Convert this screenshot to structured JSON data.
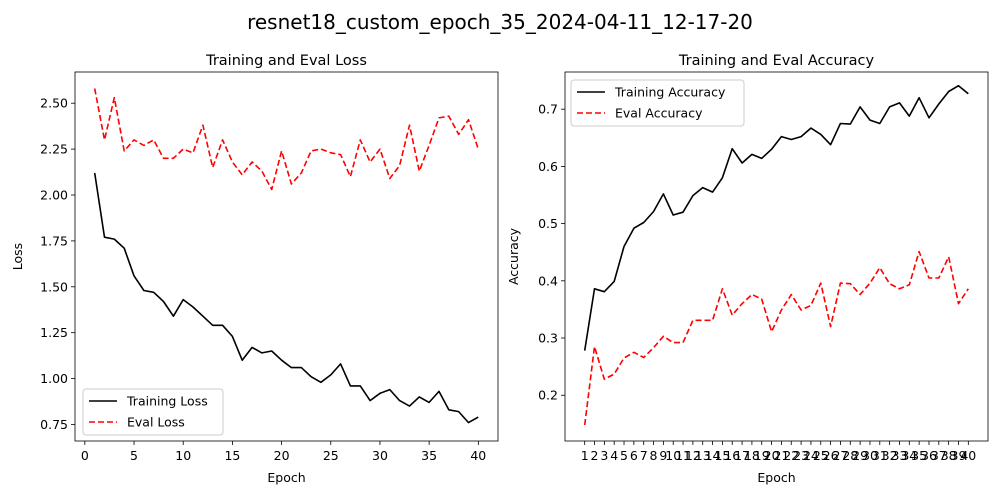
{
  "figure_title": "resnet18_custom_epoch_35_2024-04-11_12-17-20",
  "chart_data": [
    {
      "type": "line",
      "title": "Training and Eval Loss",
      "xlabel": "Epoch",
      "ylabel": "Loss",
      "xlim": [
        -1,
        42
      ],
      "ylim": [
        0.66,
        2.67
      ],
      "xticks": [
        0,
        5,
        10,
        15,
        20,
        25,
        30,
        35,
        40
      ],
      "xtick_labels": [
        "0",
        "5",
        "10",
        "15",
        "20",
        "25",
        "30",
        "35",
        "40"
      ],
      "yticks": [
        0.75,
        1.0,
        1.25,
        1.5,
        1.75,
        2.0,
        2.25,
        2.5
      ],
      "ytick_labels": [
        "0.75",
        "1.00",
        "1.25",
        "1.50",
        "1.75",
        "2.00",
        "2.25",
        "2.50"
      ],
      "legend_position": "lower-left",
      "x": [
        1,
        2,
        3,
        4,
        5,
        6,
        7,
        8,
        9,
        10,
        11,
        12,
        13,
        14,
        15,
        16,
        17,
        18,
        19,
        20,
        21,
        22,
        23,
        24,
        25,
        26,
        27,
        28,
        29,
        30,
        31,
        32,
        33,
        34,
        35,
        36,
        37,
        38,
        39,
        40
      ],
      "series": [
        {
          "name": "Training Loss",
          "color": "#000000",
          "style": "solid",
          "values": [
            2.12,
            1.77,
            1.76,
            1.71,
            1.56,
            1.48,
            1.47,
            1.42,
            1.34,
            1.43,
            1.39,
            1.34,
            1.29,
            1.29,
            1.23,
            1.1,
            1.17,
            1.14,
            1.15,
            1.1,
            1.06,
            1.06,
            1.01,
            0.98,
            1.02,
            1.08,
            0.96,
            0.96,
            0.88,
            0.92,
            0.94,
            0.88,
            0.85,
            0.9,
            0.87,
            0.93,
            0.83,
            0.82,
            0.76,
            0.79
          ]
        },
        {
          "name": "Eval Loss",
          "color": "#ff0000",
          "style": "dashed",
          "values": [
            2.58,
            2.3,
            2.53,
            2.24,
            2.3,
            2.27,
            2.3,
            2.2,
            2.2,
            2.25,
            2.23,
            2.38,
            2.15,
            2.3,
            2.18,
            2.11,
            2.18,
            2.13,
            2.03,
            2.24,
            2.06,
            2.12,
            2.24,
            2.25,
            2.23,
            2.22,
            2.1,
            2.3,
            2.18,
            2.25,
            2.09,
            2.16,
            2.38,
            2.13,
            2.27,
            2.42,
            2.43,
            2.33,
            2.41,
            2.25
          ]
        }
      ]
    },
    {
      "type": "line",
      "title": "Training and Eval Accuracy",
      "xlabel": "Epoch",
      "ylabel": "Accuracy",
      "xlim": [
        -1,
        42
      ],
      "ylim": [
        0.12,
        0.765
      ],
      "xticks": [
        1,
        2,
        3,
        4,
        5,
        6,
        7,
        8,
        9,
        10,
        11,
        12,
        13,
        14,
        15,
        16,
        17,
        18,
        19,
        20,
        21,
        22,
        23,
        24,
        25,
        26,
        27,
        28,
        29,
        30,
        31,
        32,
        33,
        34,
        35,
        36,
        37,
        38,
        39,
        40
      ],
      "xtick_labels": [
        "1",
        "2",
        "3",
        "4",
        "5",
        "6",
        "7",
        "8",
        "9",
        "10",
        "11",
        "12",
        "13",
        "14",
        "15",
        "16",
        "17",
        "18",
        "19",
        "20",
        "21",
        "22",
        "23",
        "24",
        "25",
        "26",
        "27",
        "28",
        "29",
        "30",
        "31",
        "32",
        "33",
        "34",
        "35",
        "36",
        "37",
        "38",
        "39",
        "40"
      ],
      "yticks": [
        0.2,
        0.3,
        0.4,
        0.5,
        0.6,
        0.7
      ],
      "ytick_labels": [
        "0.2",
        "0.3",
        "0.4",
        "0.5",
        "0.6",
        "0.7"
      ],
      "legend_position": "upper-left",
      "x": [
        1,
        2,
        3,
        4,
        5,
        6,
        7,
        8,
        9,
        10,
        11,
        12,
        13,
        14,
        15,
        16,
        17,
        18,
        19,
        20,
        21,
        22,
        23,
        24,
        25,
        26,
        27,
        28,
        29,
        30,
        31,
        32,
        33,
        34,
        35,
        36,
        37,
        38,
        39,
        40
      ],
      "series": [
        {
          "name": "Training Accuracy",
          "color": "#000000",
          "style": "solid",
          "values": [
            0.278,
            0.386,
            0.381,
            0.399,
            0.46,
            0.492,
            0.502,
            0.521,
            0.552,
            0.515,
            0.52,
            0.549,
            0.563,
            0.555,
            0.58,
            0.631,
            0.606,
            0.621,
            0.614,
            0.63,
            0.652,
            0.647,
            0.652,
            0.667,
            0.656,
            0.638,
            0.675,
            0.674,
            0.704,
            0.681,
            0.675,
            0.704,
            0.711,
            0.688,
            0.72,
            0.685,
            0.709,
            0.731,
            0.741,
            0.727
          ]
        },
        {
          "name": "Eval Accuracy",
          "color": "#ff0000",
          "style": "dashed",
          "values": [
            0.148,
            0.285,
            0.228,
            0.237,
            0.265,
            0.275,
            0.266,
            0.283,
            0.303,
            0.292,
            0.292,
            0.331,
            0.331,
            0.331,
            0.386,
            0.34,
            0.36,
            0.376,
            0.368,
            0.311,
            0.349,
            0.376,
            0.349,
            0.357,
            0.396,
            0.32,
            0.396,
            0.395,
            0.376,
            0.396,
            0.423,
            0.395,
            0.386,
            0.393,
            0.451,
            0.405,
            0.405,
            0.442,
            0.36,
            0.386
          ]
        }
      ]
    }
  ]
}
